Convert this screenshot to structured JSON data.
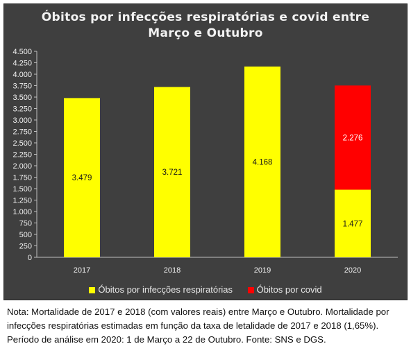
{
  "chart_data": {
    "type": "bar",
    "stacked": true,
    "title": [
      "Óbitos por infecções respiratórias e covid entre",
      "Março e Outubro"
    ],
    "categories": [
      "2017",
      "2018",
      "2019",
      "2020"
    ],
    "series": [
      {
        "name": "Óbitos por infecções respiratórias",
        "color": "#ffff00",
        "values": [
          3479,
          3721,
          4168,
          1477
        ],
        "labels": [
          "3.479",
          "3.721",
          "4.168",
          "1.477"
        ]
      },
      {
        "name": "Óbitos por covid",
        "color": "#ff0000",
        "values": [
          0,
          0,
          0,
          2276
        ],
        "labels": [
          "",
          "",
          "",
          "2.276"
        ]
      }
    ],
    "ylim": [
      0,
      4500
    ],
    "yticks": [
      0,
      250,
      500,
      750,
      1000,
      1250,
      1500,
      1750,
      2000,
      2250,
      2500,
      2750,
      3000,
      3250,
      3500,
      3750,
      4000,
      4250,
      4500
    ],
    "ytick_labels": [
      "0",
      "250",
      "500",
      "750",
      "1.000",
      "1.250",
      "1.500",
      "1.750",
      "2.000",
      "2.250",
      "2.500",
      "2.750",
      "3.000",
      "3.250",
      "3.500",
      "3.750",
      "4.000",
      "4.250",
      "4.500"
    ],
    "grid": false,
    "legend": "bottom",
    "xlabel": "",
    "ylabel": ""
  },
  "note": [
    "Nota: Mortalidade de 2017 e 2018 (com valores reais) entre Março e Outubro. Mortalidade por",
    "infecções respiratórias estimadas em função da taxa de letalidade de 2017 e 2018 (1,65%).",
    "Período de análise em 2020: 1 de Março a 22 de Outubro. Fonte: SNS e DGS."
  ],
  "colors": {
    "background": "#3f3f3f",
    "axis": "#bfbfbf",
    "text": "#f2f2f2"
  }
}
